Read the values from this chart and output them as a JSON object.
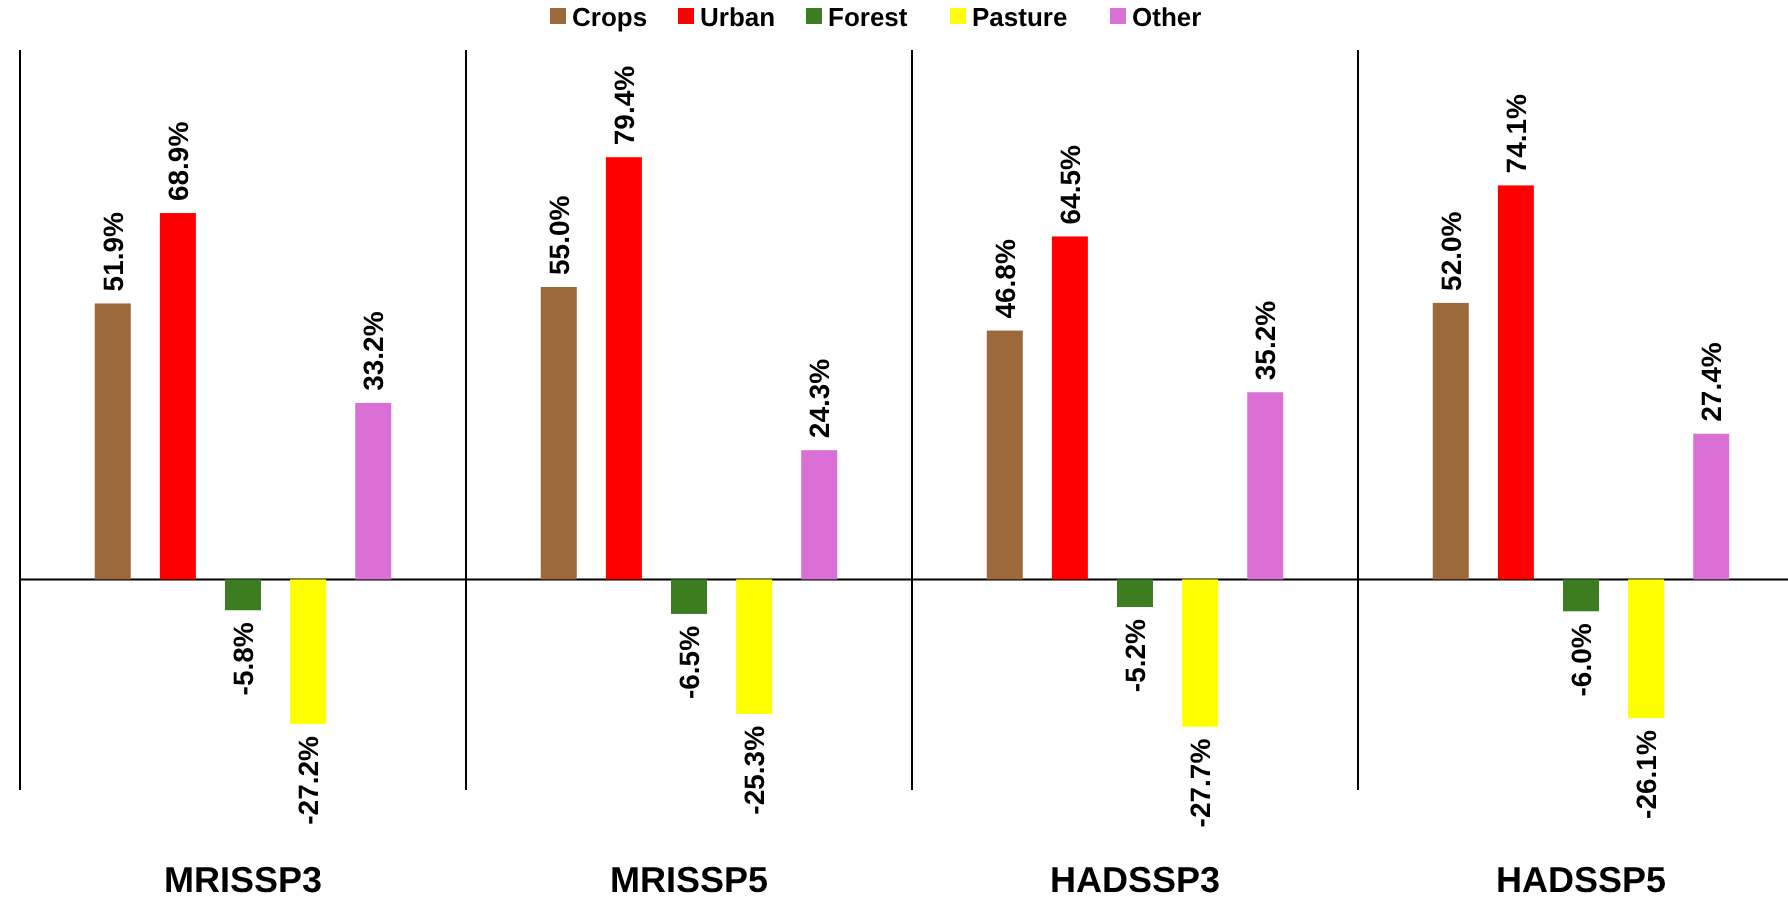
{
  "chart_data": {
    "type": "bar",
    "categories": [
      "MRISSP3",
      "MRISSP5",
      "HADSSP3",
      "HADSSP5"
    ],
    "legend": "top",
    "series": [
      {
        "name": "Crops",
        "color": "#9c6a3a",
        "values": [
          51.9,
          55.0,
          46.8,
          52.0
        ],
        "value_labels": [
          "51.9%",
          "55.0%",
          "46.8%",
          "52.0%"
        ]
      },
      {
        "name": "Urban",
        "color": "#ff0000",
        "values": [
          68.9,
          79.4,
          64.5,
          74.1
        ],
        "value_labels": [
          "68.9%",
          "79.4%",
          "64.5%",
          "74.1%"
        ]
      },
      {
        "name": "Forest",
        "color": "#3c7d22",
        "values": [
          -5.8,
          -6.5,
          -5.2,
          -6.0
        ],
        "value_labels": [
          "-5.8%",
          "-6.5%",
          "-5.2%",
          "-6.0%"
        ]
      },
      {
        "name": "Pasture",
        "color": "#ffff00",
        "values": [
          -27.2,
          -25.3,
          -27.7,
          -26.1
        ],
        "value_labels": [
          "-27.2%",
          "-25.3%",
          "-27.7%",
          "-26.1%"
        ]
      },
      {
        "name": "Other",
        "color": "#da70d6",
        "values": [
          33.2,
          24.3,
          35.2,
          27.4
        ],
        "value_labels": [
          "33.2%",
          "24.3%",
          "35.2%",
          "27.4%"
        ]
      }
    ]
  }
}
